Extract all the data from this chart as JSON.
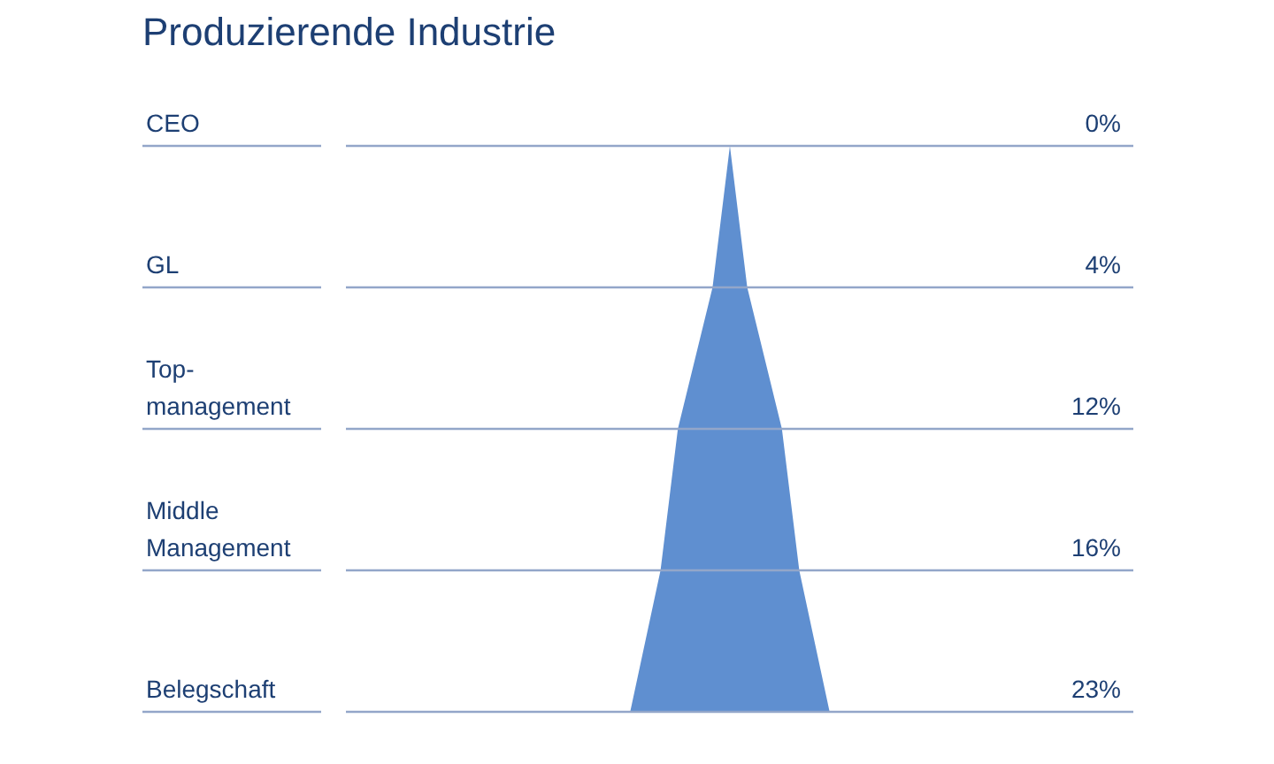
{
  "chart_data": {
    "type": "other",
    "title": "Produzierende Industrie",
    "categories": [
      "CEO",
      "GL",
      "Top-management",
      "Middle Management",
      "Belegschaft"
    ],
    "values": [
      0,
      4,
      12,
      16,
      23
    ],
    "value_labels": [
      "0%",
      "4%",
      "12%",
      "16%",
      "23%"
    ],
    "color": "#5f8fd0"
  }
}
